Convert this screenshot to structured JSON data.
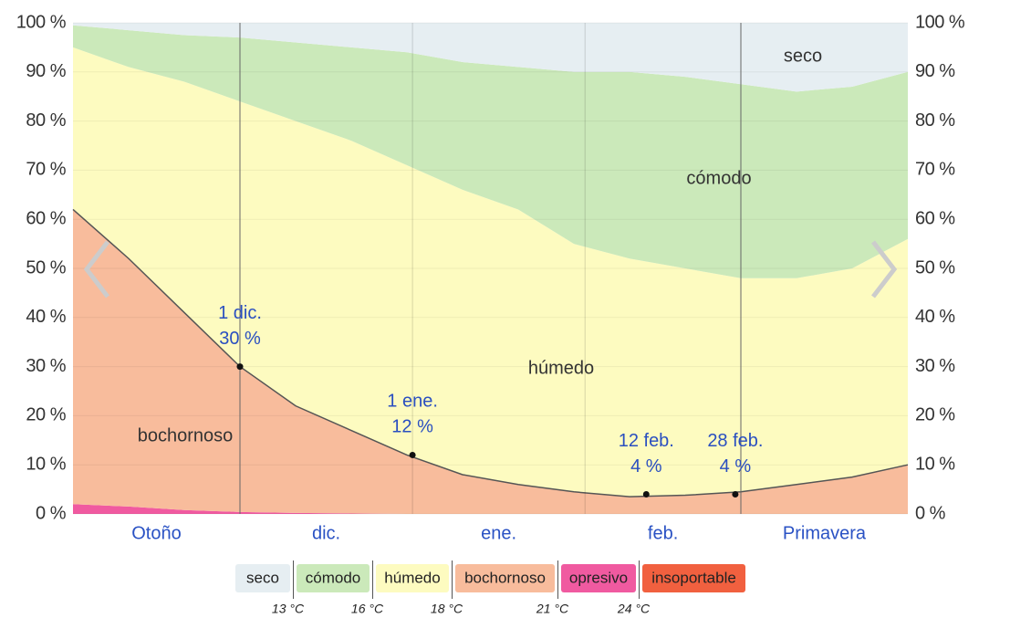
{
  "chart_data": {
    "type": "stacked_area",
    "x": [
      0,
      10,
      20,
      30,
      40,
      50,
      60,
      70,
      80,
      90,
      100,
      110,
      120,
      130,
      140,
      150
    ],
    "xlim": [
      0,
      150
    ],
    "xgrid": [
      30,
      61,
      92,
      120
    ],
    "month_labels": [
      {
        "value": 15,
        "label": "Otoño"
      },
      {
        "value": 45.5,
        "label": "dic."
      },
      {
        "value": 76.5,
        "label": "ene."
      },
      {
        "value": 106,
        "label": "feb."
      },
      {
        "value": 135,
        "label": "Primavera"
      }
    ],
    "ylim": [
      0,
      100
    ],
    "yticks": [
      {
        "value": 0,
        "label": "0 %"
      },
      {
        "value": 10,
        "label": "10 %"
      },
      {
        "value": 20,
        "label": "20 %"
      },
      {
        "value": 30,
        "label": "30 %"
      },
      {
        "value": 40,
        "label": "40 %"
      },
      {
        "value": 50,
        "label": "50 %"
      },
      {
        "value": 60,
        "label": "60 %"
      },
      {
        "value": 70,
        "label": "70 %"
      },
      {
        "value": 80,
        "label": "80 %"
      },
      {
        "value": 90,
        "label": "90 %"
      },
      {
        "value": 100,
        "label": "100 %"
      }
    ],
    "y2lim": [
      0,
      100
    ],
    "y2ticks": [
      {
        "value": 0,
        "label": "0 %"
      },
      {
        "value": 10,
        "label": "10 %"
      },
      {
        "value": 20,
        "label": "20 %"
      },
      {
        "value": 30,
        "label": "30 %"
      },
      {
        "value": 40,
        "label": "40 %"
      },
      {
        "value": 50,
        "label": "50 %"
      },
      {
        "value": 60,
        "label": "60 %"
      },
      {
        "value": 70,
        "label": "70 %"
      },
      {
        "value": 80,
        "label": "80 %"
      },
      {
        "value": 90,
        "label": "90 %"
      },
      {
        "value": 100,
        "label": "100 %"
      }
    ],
    "grid": true,
    "series": [
      {
        "name": "opresivo",
        "color": "#f05aa0",
        "values": [
          2,
          1.5,
          0.8,
          0.4,
          0.2,
          0.1,
          0,
          0,
          0,
          0,
          0,
          0,
          0,
          0,
          0,
          0
        ]
      },
      {
        "name": "bochornoso",
        "color": "#f8bc9c",
        "values": [
          60,
          50.5,
          40.2,
          29.6,
          21.8,
          16.9,
          12,
          8,
          6,
          4.5,
          3.5,
          3.8,
          4.5,
          6,
          7.5,
          10
        ]
      },
      {
        "name": "húmedo",
        "color": "#fdfbc0",
        "values": [
          33,
          39,
          47,
          54,
          58,
          59,
          59,
          58,
          56,
          50.5,
          48.5,
          46.2,
          43.5,
          42,
          42.5,
          46
        ]
      },
      {
        "name": "cómodo",
        "color": "#cbe9ba",
        "values": [
          4.5,
          7.5,
          9.5,
          13,
          16,
          19,
          23,
          26,
          29,
          35,
          38,
          39,
          39.5,
          38,
          37,
          34
        ]
      },
      {
        "name": "seco",
        "color": "#e6eef2",
        "values": [
          0.5,
          1.5,
          2.5,
          3,
          4,
          5,
          6,
          8,
          9,
          10,
          10,
          11,
          12.5,
          14,
          13,
          10
        ]
      }
    ],
    "annotations": [
      {
        "x": 30,
        "label": "1 dic.",
        "value": 30,
        "value_label": "30 %"
      },
      {
        "x": 61,
        "label": "1 ene.",
        "value": 12,
        "value_label": "12 %"
      },
      {
        "x": 103,
        "label": "12 feb.",
        "value": 4,
        "value_label": "4 %"
      },
      {
        "x": 119,
        "label": "28 feb.",
        "value": 4,
        "value_label": "4 %"
      }
    ],
    "legend": {
      "items": [
        {
          "name": "seco",
          "color": "#e6eef2"
        },
        {
          "name": "cómodo",
          "color": "#cbe9ba"
        },
        {
          "name": "húmedo",
          "color": "#fdfbc0"
        },
        {
          "name": "bochornoso",
          "color": "#f8bc9c"
        },
        {
          "name": "opresivo",
          "color": "#f05aa0"
        },
        {
          "name": "insoportable",
          "color": "#f1603f"
        }
      ],
      "thresholds": [
        {
          "value": 13,
          "label": "13 °C"
        },
        {
          "value": 16,
          "label": "16 °C"
        },
        {
          "value": 18,
          "label": "18 °C"
        },
        {
          "value": 21,
          "label": "21 °C"
        },
        {
          "value": 24,
          "label": "24 °C"
        }
      ]
    }
  }
}
